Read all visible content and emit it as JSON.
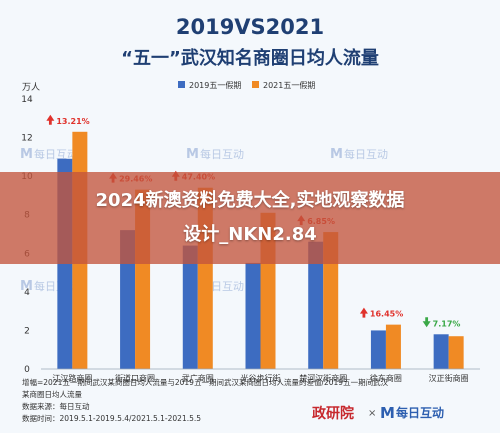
{
  "chart_data": {
    "type": "bar",
    "title": "2019VS2021",
    "subtitle": "“五一”武汉知名商圈日均人流量",
    "ylabel": "万人",
    "ylim": [
      0,
      14
    ],
    "yticks": [
      0,
      2,
      4,
      6,
      8,
      10,
      12,
      14
    ],
    "grid": false,
    "legend_position": "top",
    "categories": [
      "江汉路商圈",
      "街道口商圈",
      "武广商圈",
      "光谷步行街",
      "楚河汉街商圈",
      "徐东商圈",
      "汉正街商圈"
    ],
    "series": [
      {
        "name": "2019五一假期",
        "color": "#3d6cc1",
        "values": [
          10.9,
          7.2,
          6.4,
          5.5,
          6.6,
          2.0,
          1.8
        ]
      },
      {
        "name": "2021五一假期",
        "color": "#f08a24",
        "values": [
          12.3,
          9.3,
          9.4,
          8.1,
          7.1,
          2.3,
          1.7
        ]
      }
    ],
    "annotations": [
      {
        "category": "江汉路商圈",
        "text": "13.21%",
        "direction": "up",
        "color": "#e0322c"
      },
      {
        "category": "街道口商圈",
        "text": "29.46%",
        "direction": "up",
        "color": "#e0322c"
      },
      {
        "category": "武广商圈",
        "text": "47.40%",
        "direction": "up",
        "color": "#e0322c"
      },
      {
        "category": "楚河汉街商圈",
        "text": "6.85%",
        "direction": "up",
        "color": "#e0322c"
      },
      {
        "category": "徐东商圈",
        "text": "16.45%",
        "direction": "up",
        "color": "#e0322c"
      },
      {
        "category": "汉正街商圈",
        "text": "7.17%",
        "direction": "down",
        "color": "#3aa847"
      }
    ]
  },
  "footnotes": {
    "line1": "增幅=2021五一期间武汉某商圈日均人流量与2019五一期间武汉某商圈日均人流量的差值/2019五一期间武汉",
    "line2": "某商圈日均人流量",
    "source": "数据来源：每日互动",
    "period": "数据时间：2019.5.1-2019.5.4/2021.5.1-2021.5.5"
  },
  "watermark": {
    "brand_left": "M",
    "brand_text": "每日互动"
  },
  "logos": {
    "left": "政研院",
    "separator": "×",
    "right_mark": "M",
    "right_text": "每日互动"
  },
  "overlay": {
    "line1": "2024新澳资料免费大全,实地观察数据",
    "line2": "设计_NKN2.84"
  }
}
